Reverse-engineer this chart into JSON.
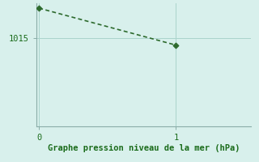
{
  "x": [
    0,
    1
  ],
  "y": [
    1021.0,
    1013.5
  ],
  "line_color": "#2d6a2d",
  "marker_color": "#2d6a2d",
  "bg_color": "#d8f0ec",
  "grid_color": "#aad4cc",
  "spine_color": "#8aada8",
  "xlabel": "Graphe pression niveau de la mer (hPa)",
  "xlabel_color": "#1a6b1a",
  "tick_label_color": "#1a6b1a",
  "ytick_value": 1015,
  "xticks": [
    0,
    1
  ],
  "xlim": [
    -0.02,
    1.55
  ],
  "ylim": [
    997,
    1022
  ],
  "figsize": [
    3.2,
    2.0
  ],
  "dpi": 100,
  "xlabel_fontsize": 7.5,
  "tick_fontsize": 7.5,
  "linewidth": 1.2,
  "markersize": 3.5
}
